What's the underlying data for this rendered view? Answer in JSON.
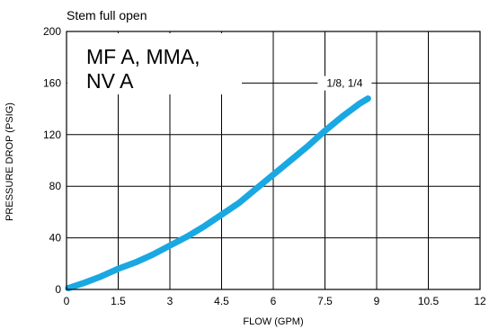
{
  "chart_data": {
    "type": "line",
    "title": "Stem full open",
    "inset_title_lines": [
      "MF A, MMA,",
      "NV A"
    ],
    "xlabel": "FLOW (GPM)",
    "ylabel": "PRESSURE DROP (PSIG)",
    "xlim": [
      0,
      12
    ],
    "ylim": [
      0,
      200
    ],
    "x_ticks": [
      0,
      1.5,
      3,
      4.5,
      6,
      7.5,
      9,
      10.5,
      12
    ],
    "x_tick_labels": [
      "0",
      "1.5",
      "3",
      "4.5",
      "6",
      "7.5",
      "9",
      "10.5",
      "12"
    ],
    "y_ticks": [
      0,
      40,
      80,
      120,
      160,
      200
    ],
    "y_tick_labels": [
      "0",
      "40",
      "80",
      "120",
      "160",
      "200"
    ],
    "grid": true,
    "series": [
      {
        "name": "1/8, 1/4",
        "color": "#19a8e2",
        "x": [
          0.05,
          0.5,
          1.0,
          1.5,
          2.0,
          2.5,
          3.0,
          3.5,
          4.0,
          4.5,
          5.0,
          5.5,
          6.0,
          6.5,
          7.0,
          7.5,
          8.0,
          8.5,
          8.75
        ],
        "y": [
          1,
          5,
          10,
          16,
          21,
          27,
          34,
          41,
          49,
          58,
          67,
          78,
          89,
          100,
          111,
          123,
          134,
          144,
          148
        ]
      }
    ]
  }
}
